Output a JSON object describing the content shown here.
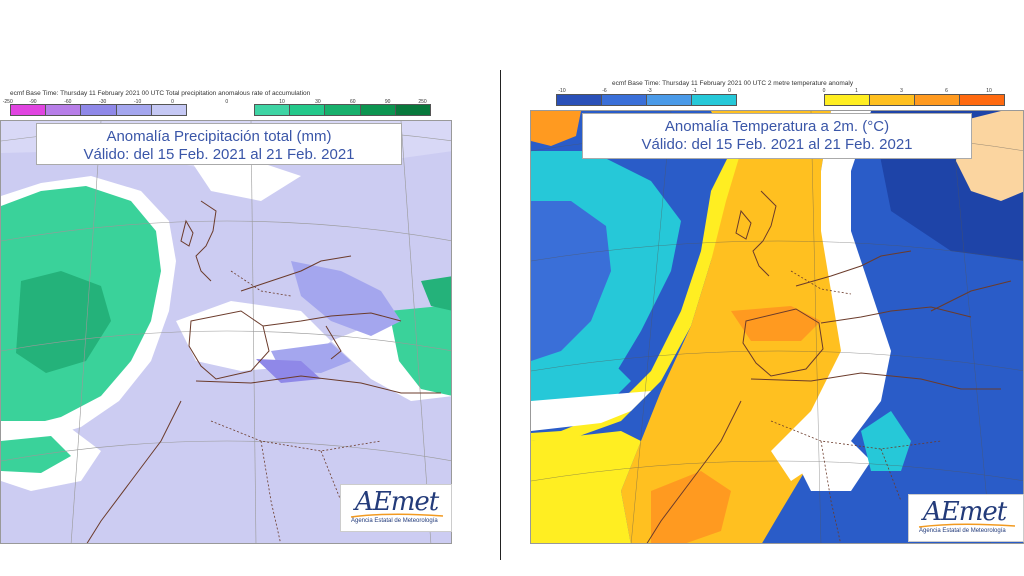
{
  "left": {
    "colorbar_caption": "ecmf  Base Time: Thursday 11 February 2021 00 UTC Total precipitation anomalous rate of accumulation",
    "colorbar_ticks": [
      "-250",
      "-90",
      "-60",
      "-30",
      "-10",
      "0",
      "0",
      "10",
      "30",
      "60",
      "90",
      "250"
    ],
    "colorbar_colors": [
      "#e044e0",
      "#b77ee8",
      "#8f88e8",
      "#a4a6ee",
      "#c5c8f4",
      "#3fd4a4",
      "#24c88a",
      "#18b06c",
      "#0c9450",
      "#08783c"
    ],
    "title_line1": "Anomalía Precipitación total (mm)",
    "title_line2": "Válido: del 15 Feb. 2021 al 21 Feb. 2021",
    "logo_text": "AEmet",
    "logo_sub": "Agencia Estatal de Meteorología"
  },
  "right": {
    "colorbar_caption": "ecmf  Base Time: Thursday 11 February 2021 00 UTC 2 metre temperature anomaly",
    "colorbar_ticks_cold": [
      "-10",
      "-6",
      "-3",
      "-1",
      "0"
    ],
    "colorbar_ticks_warm": [
      "0",
      "1",
      "3",
      "6",
      "10"
    ],
    "colorbar_colors_cold": [
      "#2a50b8",
      "#3a6fd8",
      "#4a9ae8",
      "#26c8d8"
    ],
    "colorbar_colors_warm": [
      "#ffee22",
      "#ffc020",
      "#ff9a20",
      "#ff6a10"
    ],
    "title_line1": "Anomalía Temperatura a 2m. (°C)",
    "title_line2": "Válido: del 15 Feb. 2021 al 21 Feb. 2021",
    "logo_text": "AEmet",
    "logo_sub": "Agencia Estatal de Meteorología"
  }
}
